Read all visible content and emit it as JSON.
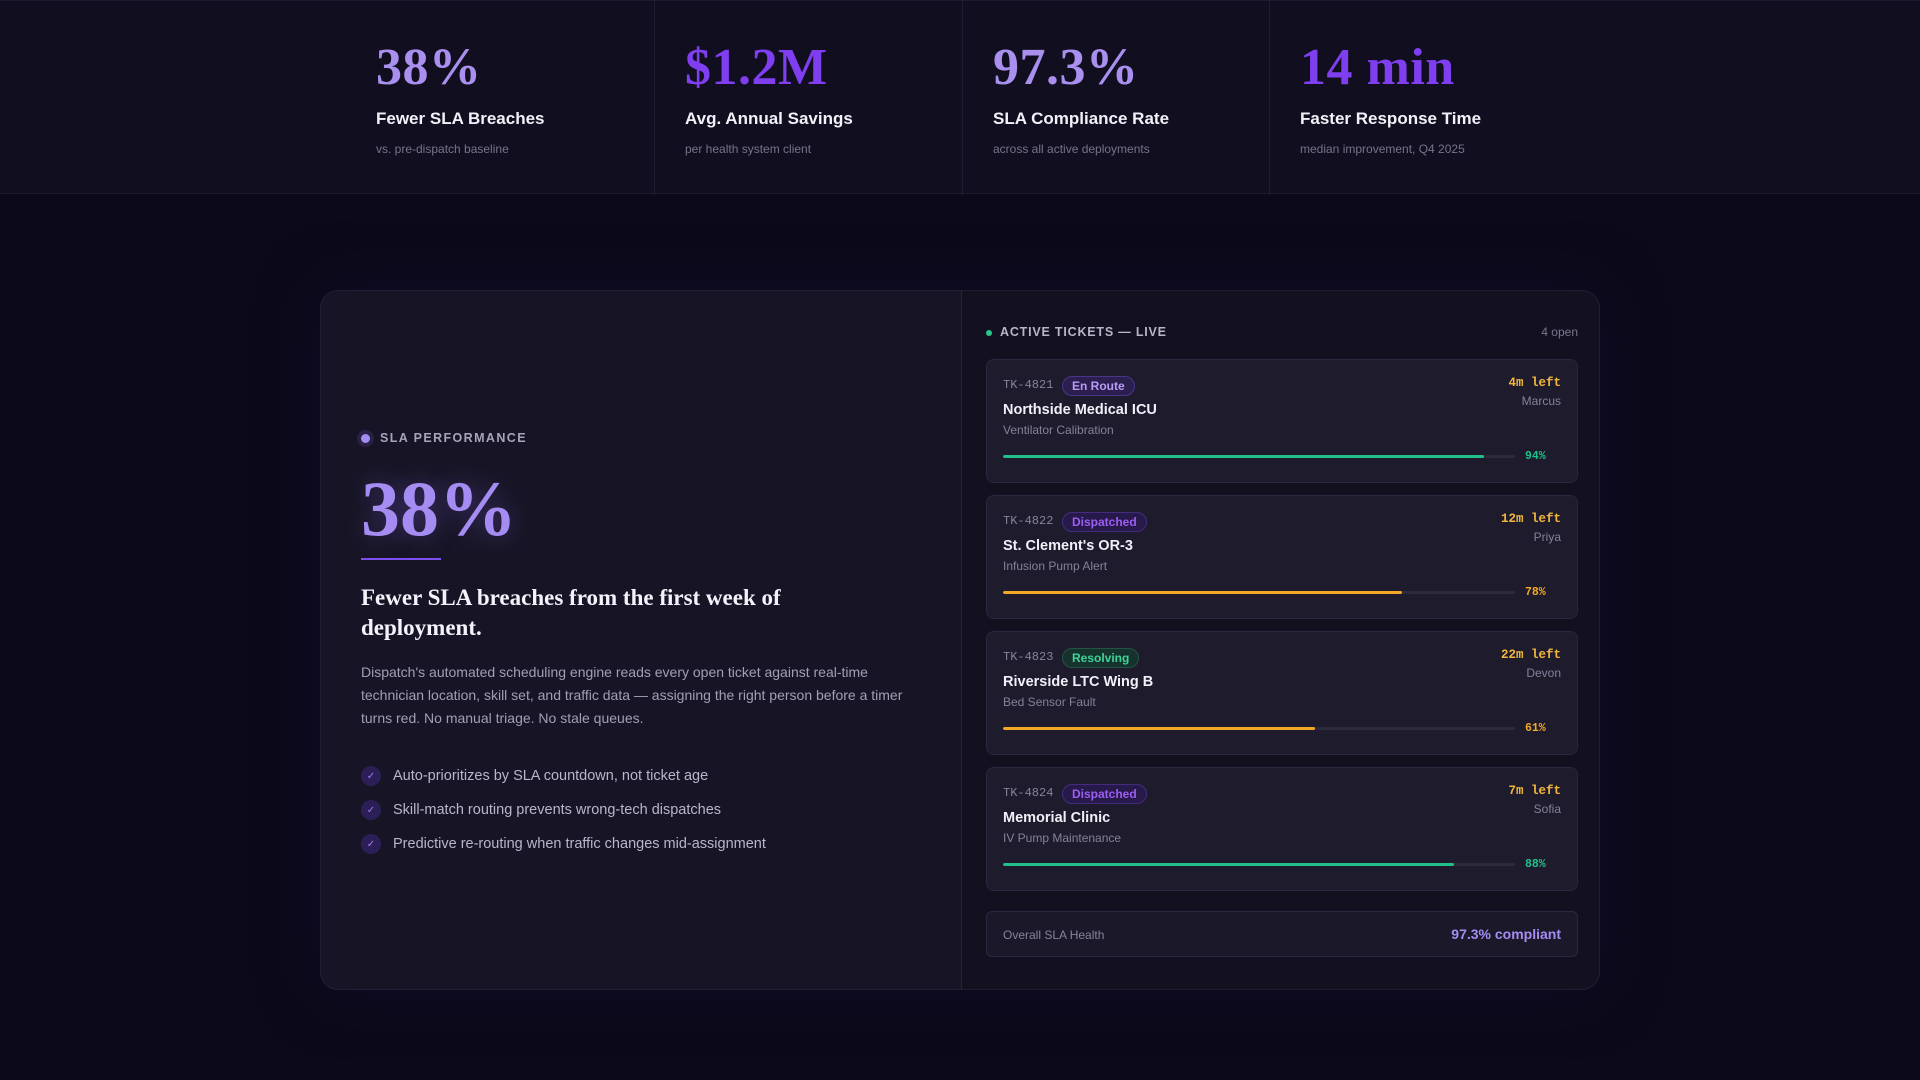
{
  "stats": [
    {
      "value": "38%",
      "label": "Fewer SLA Breaches",
      "sub": "vs. pre-dispatch baseline"
    },
    {
      "value": "$1.2M",
      "label": "Avg. Annual Savings",
      "sub": "per health system client"
    },
    {
      "value": "97.3%",
      "label": "SLA Compliance Rate",
      "sub": "across all active deployments"
    },
    {
      "value": "14 min",
      "label": "Faster Response Time",
      "sub": "median improvement, Q4 2025"
    }
  ],
  "performance": {
    "eyebrow": "SLA PERFORMANCE",
    "big_value": "38%",
    "headline": "Fewer SLA breaches from the first week of deployment.",
    "body": "Dispatch's automated scheduling engine reads every open ticket against real-time technician location, skill set, and traffic data — assigning the right person before a timer turns red. No manual triage. No stale queues.",
    "benefits": [
      "Auto-prioritizes by SLA countdown, not ticket age",
      "Skill-match routing prevents wrong-tech dispatches",
      "Predictive re-routing when traffic changes mid-assignment"
    ],
    "check_icon": "✓"
  },
  "tickets": {
    "title": "ACTIVE TICKETS — LIVE",
    "count": "4 open",
    "items": [
      {
        "id": "TK-4821",
        "status": "En Route",
        "name": "Northside Medical ICU",
        "type": "Ventilator Calibration",
        "time_left": "4m left",
        "tech": "Marcus",
        "progress": 94,
        "progress_label": "94%"
      },
      {
        "id": "TK-4822",
        "status": "Dispatched",
        "name": "St. Clement's OR-3",
        "type": "Infusion Pump Alert",
        "time_left": "12m left",
        "tech": "Priya",
        "progress": 78,
        "progress_label": "78%"
      },
      {
        "id": "TK-4823",
        "status": "Resolving",
        "name": "Riverside LTC Wing B",
        "type": "Bed Sensor Fault",
        "time_left": "22m left",
        "tech": "Devon",
        "progress": 61,
        "progress_label": "61%"
      },
      {
        "id": "TK-4824",
        "status": "Dispatched",
        "name": "Memorial Clinic",
        "type": "IV Pump Maintenance",
        "time_left": "7m left",
        "tech": "Sofia",
        "progress": 88,
        "progress_label": "88%"
      }
    ]
  },
  "health": {
    "label": "Overall SLA Health",
    "value": "97.3% compliant"
  },
  "colors": {
    "accent": "#a58cf2",
    "accent_strong": "#7f3ef0",
    "success": "#21c08a",
    "warning": "#f3a828",
    "time_warning": "#f4b73c"
  }
}
